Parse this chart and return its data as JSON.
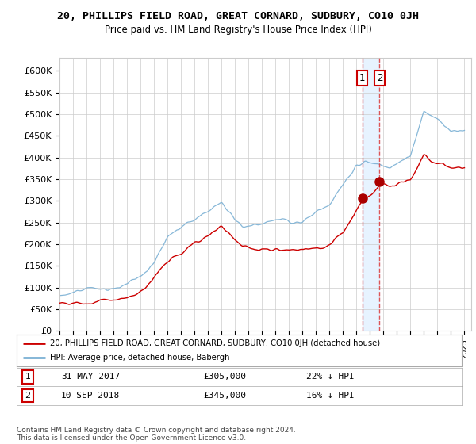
{
  "title": "20, PHILLIPS FIELD ROAD, GREAT CORNARD, SUDBURY, CO10 0JH",
  "subtitle": "Price paid vs. HM Land Registry's House Price Index (HPI)",
  "ylabel_ticks": [
    "£0",
    "£50K",
    "£100K",
    "£150K",
    "£200K",
    "£250K",
    "£300K",
    "£350K",
    "£400K",
    "£450K",
    "£500K",
    "£550K",
    "£600K"
  ],
  "ytick_vals": [
    0,
    50000,
    100000,
    150000,
    200000,
    250000,
    300000,
    350000,
    400000,
    450000,
    500000,
    550000,
    600000
  ],
  "ylim": [
    0,
    630000
  ],
  "xlim": [
    1995,
    2025.5
  ],
  "sale1_x": 2017.42,
  "sale1_y": 305000,
  "sale2_x": 2018.71,
  "sale2_y": 345000,
  "legend_line1": "20, PHILLIPS FIELD ROAD, GREAT CORNARD, SUDBURY, CO10 0JH (detached house)",
  "legend_line2": "HPI: Average price, detached house, Babergh",
  "footnote": "Contains HM Land Registry data © Crown copyright and database right 2024.\nThis data is licensed under the Open Government Licence v3.0.",
  "line_color_red": "#cc0000",
  "line_color_blue": "#7ab0d4",
  "marker_color_red": "#aa0000",
  "vline_color": "#dd4444",
  "shade_color": "#ddeeff",
  "background_color": "#ffffff",
  "grid_color": "#cccccc",
  "hpi_seed": 12345,
  "prop_seed": 99999
}
